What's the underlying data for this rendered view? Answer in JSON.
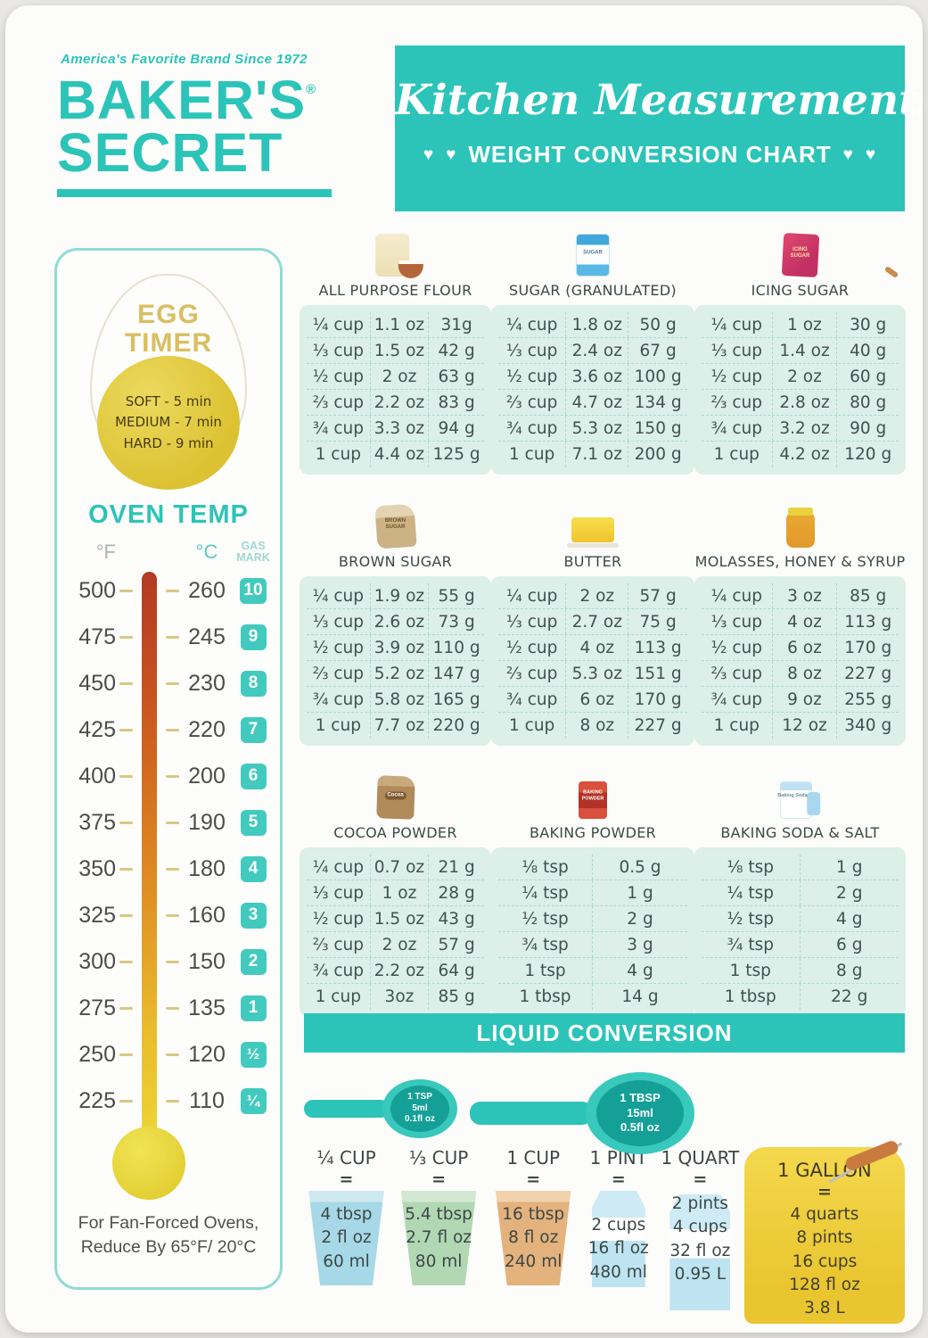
{
  "colors": {
    "accent_teal": "#2cc4b8",
    "table_bg": "#dcefe9",
    "yolk_yellow": "#dcc232"
  },
  "brand": {
    "tagline": "America's Favorite Brand Since 1972",
    "name_line1": "BAKER'S",
    "name_line2": "SECRET",
    "registered": "®"
  },
  "banner": {
    "title": "Kitchen Measurements",
    "subtitle": "WEIGHT CONVERSION CHART",
    "heart": "♥"
  },
  "egg_timer": {
    "title_line1": "EGG",
    "title_line2": "TIMER",
    "levels": [
      "SOFT - 5 min",
      "MEDIUM - 7 min",
      "HARD - 9 min"
    ]
  },
  "oven_temp": {
    "title": "OVEN TEMP",
    "col_f": "°F",
    "col_c": "°C",
    "col_gas_line1": "GAS",
    "col_gas_line2": "MARK",
    "rows": [
      {
        "f": "500",
        "c": "260",
        "gas": "10"
      },
      {
        "f": "475",
        "c": "245",
        "gas": "9"
      },
      {
        "f": "450",
        "c": "230",
        "gas": "8"
      },
      {
        "f": "425",
        "c": "220",
        "gas": "7"
      },
      {
        "f": "400",
        "c": "200",
        "gas": "6"
      },
      {
        "f": "375",
        "c": "190",
        "gas": "5"
      },
      {
        "f": "350",
        "c": "180",
        "gas": "4"
      },
      {
        "f": "325",
        "c": "160",
        "gas": "3"
      },
      {
        "f": "300",
        "c": "150",
        "gas": "2"
      },
      {
        "f": "275",
        "c": "135",
        "gas": "1"
      },
      {
        "f": "250",
        "c": "120",
        "gas": "½"
      },
      {
        "f": "225",
        "c": "110",
        "gas": "¼"
      }
    ],
    "note_line1": "For Fan-Forced Ovens,",
    "note_line2": "Reduce By 65°F/ 20°C"
  },
  "tables": [
    {
      "title": "ALL PURPOSE FLOUR",
      "icon": "flour-bag-icon",
      "icon_label": "",
      "rows": [
        [
          "¼ cup",
          "1.1 oz",
          "31g"
        ],
        [
          "⅓ cup",
          "1.5 oz",
          "42 g"
        ],
        [
          "½ cup",
          "2 oz",
          "63 g"
        ],
        [
          "⅔ cup",
          "2.2 oz",
          "83 g"
        ],
        [
          "¾ cup",
          "3.3 oz",
          "94 g"
        ],
        [
          "1 cup",
          "4.4 oz",
          "125 g"
        ]
      ]
    },
    {
      "title": "SUGAR (GRANULATED)",
      "icon": "sugar-bag-icon",
      "icon_label": "SUGAR",
      "rows": [
        [
          "¼ cup",
          "1.8 oz",
          "50 g"
        ],
        [
          "⅓ cup",
          "2.4 oz",
          "67 g"
        ],
        [
          "½ cup",
          "3.6 oz",
          "100 g"
        ],
        [
          "⅔ cup",
          "4.7 oz",
          "134 g"
        ],
        [
          "¾ cup",
          "5.3 oz",
          "150 g"
        ],
        [
          "1 cup",
          "7.1 oz",
          "200 g"
        ]
      ]
    },
    {
      "title": "ICING SUGAR",
      "icon": "icing-sugar-bag-icon",
      "icon_label": "ICING SUGAR",
      "rows": [
        [
          "¼ cup",
          "1 oz",
          "30 g"
        ],
        [
          "⅓ cup",
          "1.4 oz",
          "40 g"
        ],
        [
          "½ cup",
          "2 oz",
          "60 g"
        ],
        [
          "⅔ cup",
          "2.8 oz",
          "80 g"
        ],
        [
          "¾ cup",
          "3.2 oz",
          "90 g"
        ],
        [
          "1 cup",
          "4.2 oz",
          "120 g"
        ]
      ]
    },
    {
      "title": "BROWN SUGAR",
      "icon": "brown-sugar-bag-icon",
      "icon_label": "BROWN SUGAR",
      "rows": [
        [
          "¼ cup",
          "1.9 oz",
          "55 g"
        ],
        [
          "⅓ cup",
          "2.6 oz",
          "73 g"
        ],
        [
          "½ cup",
          "3.9 oz",
          "110 g"
        ],
        [
          "⅔ cup",
          "5.2 oz",
          "147 g"
        ],
        [
          "¾ cup",
          "5.8 oz",
          "165 g"
        ],
        [
          "1 cup",
          "7.7 oz",
          "220 g"
        ]
      ]
    },
    {
      "title": "BUTTER",
      "icon": "butter-icon",
      "icon_label": "",
      "rows": [
        [
          "¼ cup",
          "2 oz",
          "57 g"
        ],
        [
          "⅓ cup",
          "2.7 oz",
          "75 g"
        ],
        [
          "½ cup",
          "4 oz",
          "113 g"
        ],
        [
          "⅔ cup",
          "5.3 oz",
          "151 g"
        ],
        [
          "¾ cup",
          "6 oz",
          "170 g"
        ],
        [
          "1 cup",
          "8 oz",
          "227 g"
        ]
      ]
    },
    {
      "title": "MOLASSES, HONEY & SYRUP",
      "icon": "honey-jar-icon",
      "icon_label": "",
      "rows": [
        [
          "¼ cup",
          "3 oz",
          "85 g"
        ],
        [
          "⅓ cup",
          "4 oz",
          "113 g"
        ],
        [
          "½ cup",
          "6 oz",
          "170 g"
        ],
        [
          "⅔ cup",
          "8 oz",
          "227 g"
        ],
        [
          "¾ cup",
          "9 oz",
          "255 g"
        ],
        [
          "1 cup",
          "12 oz",
          "340 g"
        ]
      ]
    },
    {
      "title": "COCOA POWDER",
      "icon": "cocoa-bag-icon",
      "icon_label": "Cocoa",
      "rows": [
        [
          "¼ cup",
          "0.7 oz",
          "21 g"
        ],
        [
          "⅓ cup",
          "1 oz",
          "28 g"
        ],
        [
          "½ cup",
          "1.5 oz",
          "43 g"
        ],
        [
          "⅔ cup",
          "2 oz",
          "57 g"
        ],
        [
          "¾ cup",
          "2.2 oz",
          "64 g"
        ],
        [
          "1 cup",
          "3oz",
          "85 g"
        ]
      ]
    },
    {
      "title": "BAKING POWDER",
      "icon": "baking-powder-icon",
      "icon_label": "BAKING POWDER",
      "rows": [
        [
          "⅛ tsp",
          "0.5 g"
        ],
        [
          "¼ tsp",
          "1 g"
        ],
        [
          "½ tsp",
          "2 g"
        ],
        [
          "¾ tsp",
          "3 g"
        ],
        [
          "1 tsp",
          "4 g"
        ],
        [
          "1 tbsp",
          "14 g"
        ]
      ]
    },
    {
      "title": "BAKING SODA & SALT",
      "icon": "baking-soda-icon",
      "icon_label": "Baking Soda",
      "rows": [
        [
          "⅛ tsp",
          "1 g"
        ],
        [
          "¼ tsp",
          "2 g"
        ],
        [
          "½ tsp",
          "4 g"
        ],
        [
          "¾ tsp",
          "6 g"
        ],
        [
          "1 tsp",
          "8 g"
        ],
        [
          "1 tbsp",
          "22 g"
        ]
      ]
    }
  ],
  "liquid": {
    "title": "LIQUID CONVERSION",
    "spoons": [
      {
        "label": "1 TSP",
        "ml": "5ml",
        "floz": "0.1fl oz"
      },
      {
        "label": "1 TBSP",
        "ml": "15ml",
        "floz": "0.5fl oz"
      }
    ],
    "items": [
      {
        "label": "¼ CUP",
        "eq": "=",
        "type": "cup-blue",
        "icon": "measuring-cup-icon",
        "lines": [
          "4 tbsp",
          "2 fl oz",
          "60 ml"
        ]
      },
      {
        "label": "⅓ CUP",
        "eq": "=",
        "type": "cup-green",
        "icon": "measuring-cup-icon",
        "lines": [
          "5.4 tbsp",
          "2.7 fl oz",
          "80 ml"
        ]
      },
      {
        "label": "1 CUP",
        "eq": "=",
        "type": "cup-orange",
        "icon": "measuring-cup-icon",
        "lines": [
          "16 tbsp",
          "8 fl oz",
          "240 ml"
        ]
      },
      {
        "label": "1 PINT",
        "eq": "=",
        "type": "carton-pint",
        "icon": "milk-carton-icon",
        "lines": [
          "2 cups",
          "16 fl oz",
          "480 ml"
        ]
      },
      {
        "label": "1 QUART",
        "eq": "=",
        "type": "carton-quart",
        "icon": "milk-carton-icon",
        "lines": [
          "2 pints",
          "4 cups",
          "32 fl oz",
          "0.95 L"
        ]
      },
      {
        "label": "1 GALLON",
        "eq": "=",
        "type": "jug",
        "icon": "gallon-jug-icon",
        "lines": [
          "4 quarts",
          "8 pints",
          "16 cups",
          "128 fl oz",
          "3.8 L"
        ]
      }
    ]
  }
}
